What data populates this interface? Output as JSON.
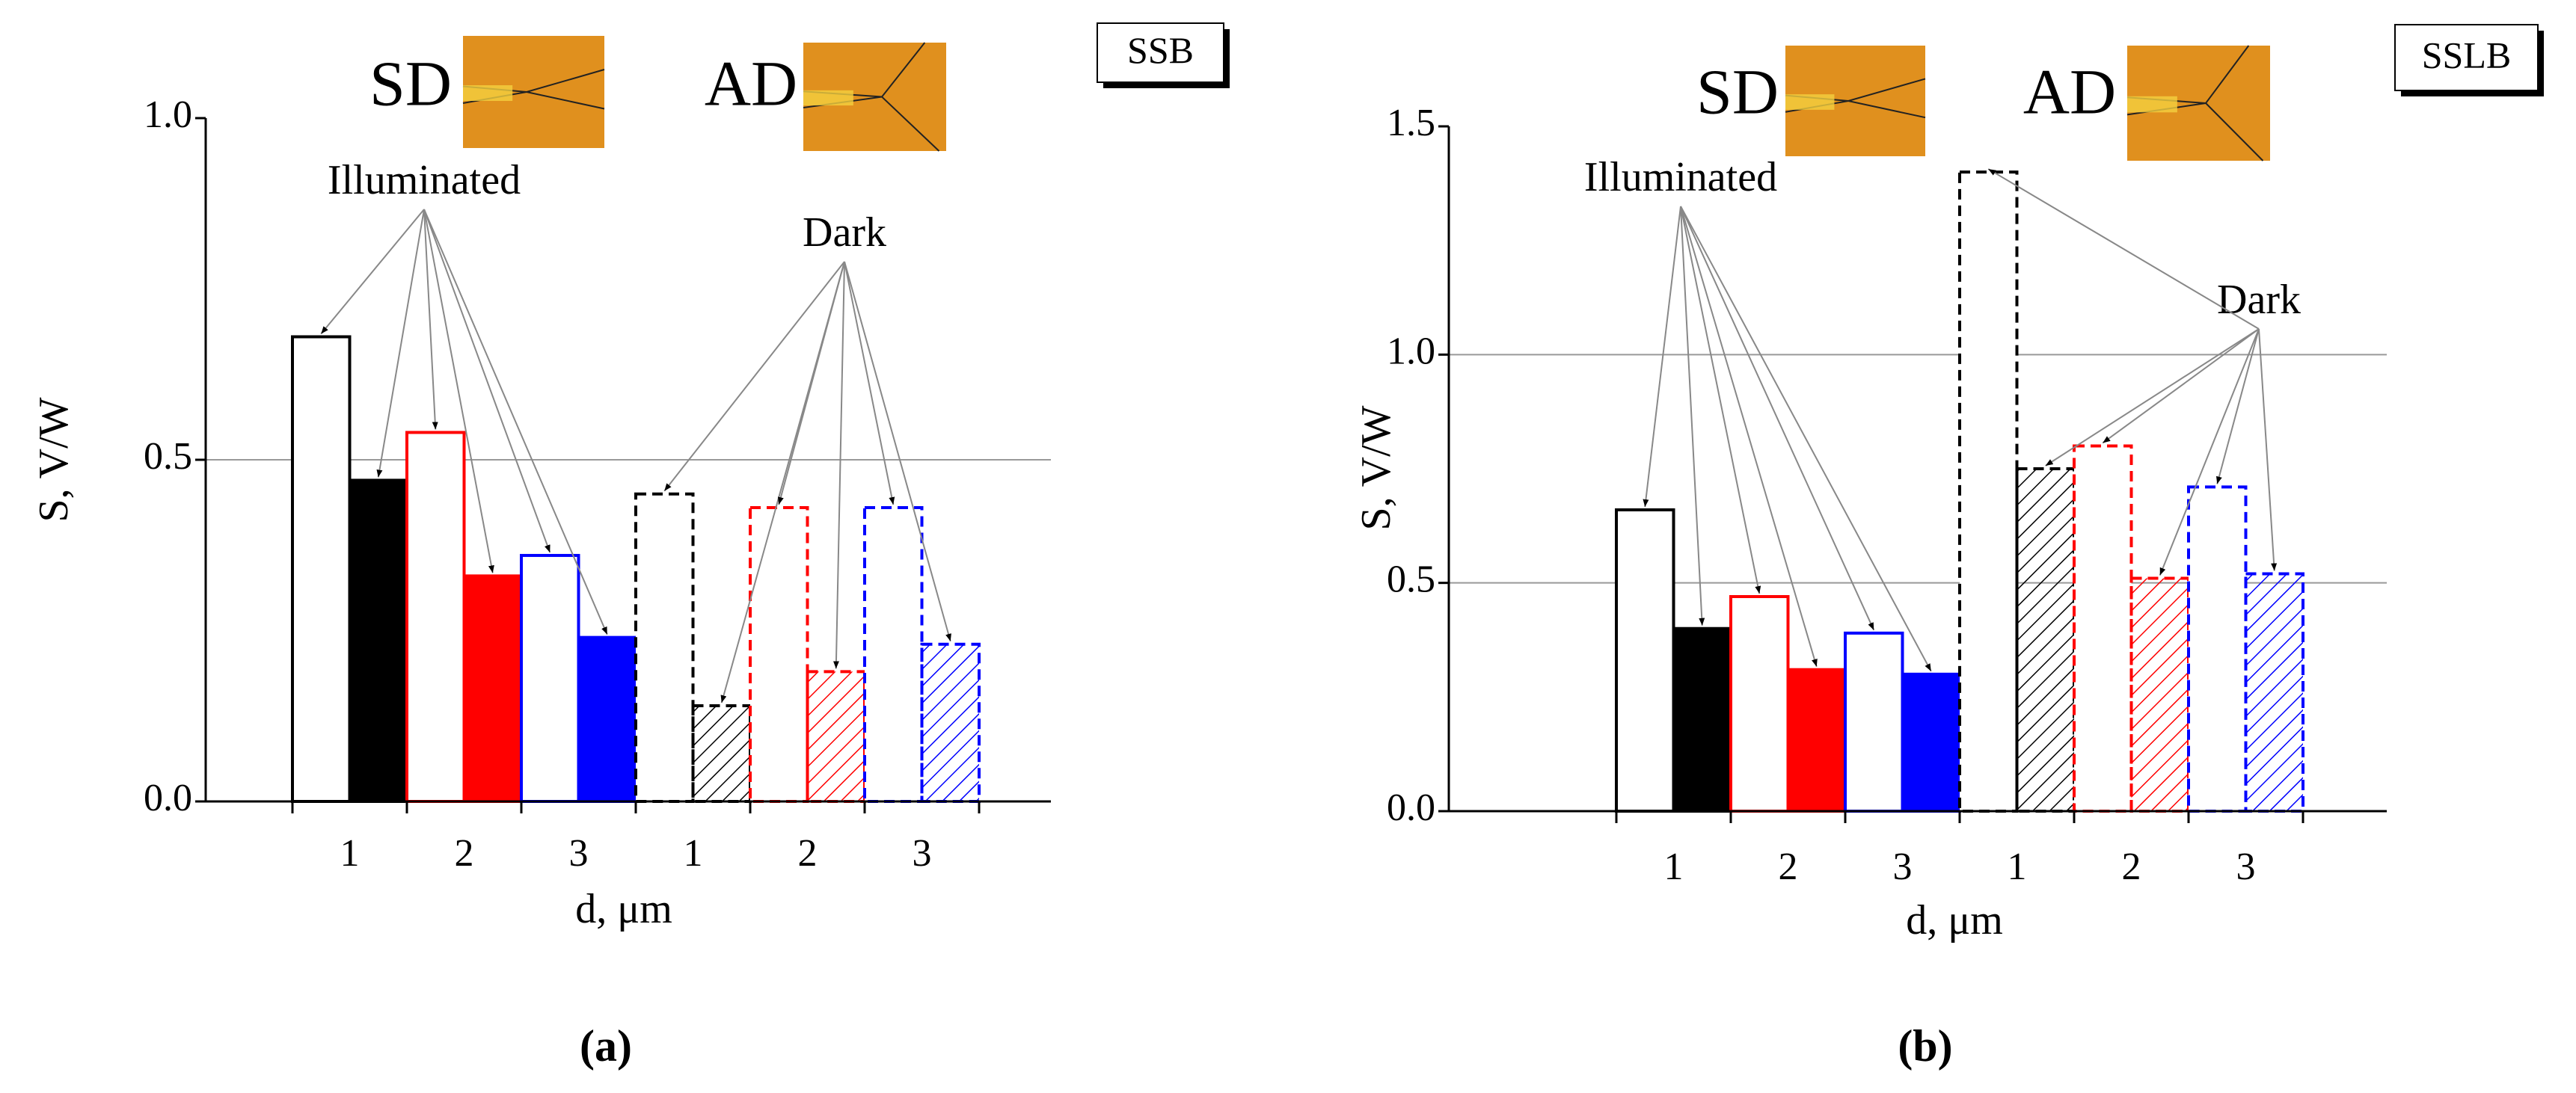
{
  "chart_data": [
    {
      "type": "bar",
      "panel_label": "(a)",
      "box_label": "SSB",
      "image_labels": [
        "SD",
        "AD"
      ],
      "annotations": [
        "Illuminated",
        "Dark"
      ],
      "xlabel": "d, μm",
      "ylabel": "S, V/W",
      "categories": [
        "1",
        "2",
        "3",
        "1",
        "2",
        "3"
      ],
      "category_colors": [
        "#000000",
        "#ff0000",
        "#0000ff",
        "#000000",
        "#ff0000",
        "#0000ff"
      ],
      "series": [
        {
          "name": "SD",
          "values": [
            0.68,
            0.54,
            0.36,
            0.45,
            0.43,
            0.43
          ]
        },
        {
          "name": "AD",
          "values": [
            0.47,
            0.33,
            0.24,
            0.14,
            0.19,
            0.23
          ]
        }
      ],
      "ylim": [
        0,
        1.0
      ],
      "yticks": [
        {
          "value": 0,
          "label": "0.0"
        },
        {
          "value": 0.5,
          "label": "0.5"
        },
        {
          "value": 1.0,
          "label": "1.0"
        }
      ],
      "grid": true
    },
    {
      "type": "bar",
      "panel_label": "(b)",
      "box_label": "SSLB",
      "image_labels": [
        "SD",
        "AD"
      ],
      "annotations": [
        "Illuminated",
        "Dark"
      ],
      "xlabel": "d, μm",
      "ylabel": "S, V/W",
      "categories": [
        "1",
        "2",
        "3",
        "1",
        "2",
        "3"
      ],
      "category_colors": [
        "#000000",
        "#ff0000",
        "#0000ff",
        "#000000",
        "#ff0000",
        "#0000ff"
      ],
      "series": [
        {
          "name": "SD",
          "values": [
            0.66,
            0.47,
            0.39,
            1.4,
            0.8,
            0.71
          ]
        },
        {
          "name": "AD",
          "values": [
            0.4,
            0.31,
            0.3,
            0.75,
            0.51,
            0.52
          ]
        }
      ],
      "ylim": [
        0,
        1.5
      ],
      "yticks": [
        {
          "value": 0,
          "label": "0.0"
        },
        {
          "value": 0.5,
          "label": "0.5"
        },
        {
          "value": 1.0,
          "label": "1.0"
        },
        {
          "value": 1.5,
          "label": "1.5"
        }
      ],
      "grid": true
    }
  ]
}
